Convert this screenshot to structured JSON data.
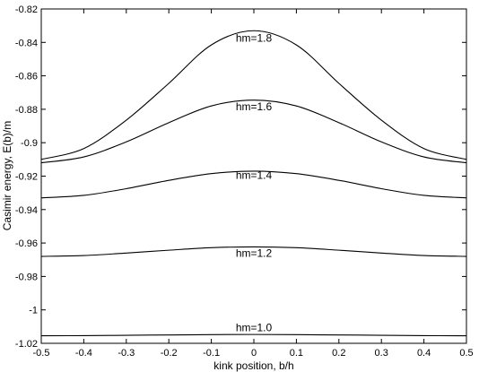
{
  "chart_data": {
    "type": "line",
    "title": "",
    "xlabel": "kink position, b/h",
    "ylabel": "Casimir energy, E(b)/m",
    "xlim": [
      -0.5,
      0.5
    ],
    "ylim": [
      -1.02,
      -0.82
    ],
    "grid": false,
    "legend": "none",
    "x_ticks": [
      "-0.5",
      "-0.4",
      "-0.3",
      "-0.2",
      "-0.1",
      "0",
      "0.1",
      "0.2",
      "0.3",
      "0.4",
      "0.5"
    ],
    "y_ticks": [
      "-0.82",
      "-0.84",
      "-0.86",
      "-0.88",
      "-0.9",
      "-0.92",
      "-0.94",
      "-0.96",
      "-0.98",
      "-1",
      "-1.02"
    ],
    "x": [
      -0.5,
      -0.4,
      -0.3,
      -0.2,
      -0.1,
      0,
      0.1,
      0.2,
      0.3,
      0.4,
      0.5
    ],
    "series": [
      {
        "name": "hm=1.0",
        "label_at": [
          0,
          -1.0105
        ],
        "values": [
          -1.0155,
          -1.0154,
          -1.0152,
          -1.015,
          -1.0148,
          -1.0147,
          -1.0148,
          -1.015,
          -1.0152,
          -1.0154,
          -1.0155
        ]
      },
      {
        "name": "hm=1.2",
        "label_at": [
          0,
          -0.966
        ],
        "values": [
          -0.968,
          -0.9675,
          -0.966,
          -0.9643,
          -0.9628,
          -0.9623,
          -0.9628,
          -0.9643,
          -0.966,
          -0.9675,
          -0.968
        ]
      },
      {
        "name": "hm=1.4",
        "label_at": [
          0,
          -0.9195
        ],
        "values": [
          -0.933,
          -0.9315,
          -0.9275,
          -0.9225,
          -0.9185,
          -0.917,
          -0.9185,
          -0.9225,
          -0.9275,
          -0.9315,
          -0.933
        ]
      },
      {
        "name": "hm=1.6",
        "label_at": [
          0,
          -0.8785
        ],
        "values": [
          -0.912,
          -0.9085,
          -0.8995,
          -0.888,
          -0.878,
          -0.8745,
          -0.878,
          -0.888,
          -0.8995,
          -0.9085,
          -0.912
        ]
      },
      {
        "name": "hm=1.8",
        "label_at": [
          0,
          -0.8375
        ],
        "values": [
          -0.91,
          -0.9035,
          -0.8865,
          -0.8645,
          -0.8415,
          -0.833,
          -0.8415,
          -0.8645,
          -0.8865,
          -0.9035,
          -0.91
        ]
      }
    ]
  }
}
